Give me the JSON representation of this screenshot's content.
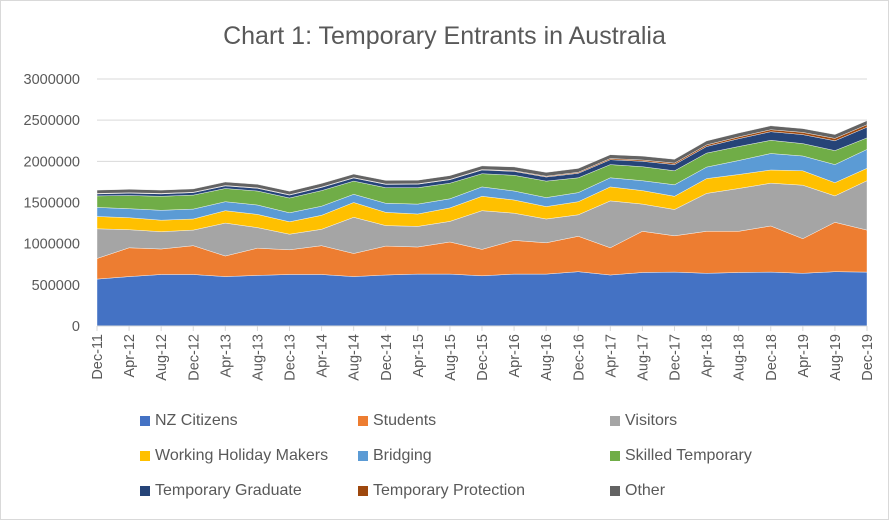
{
  "chart_data": {
    "type": "area",
    "stacked": true,
    "title": "Chart 1: Temporary Entrants in Australia",
    "xlabel": "",
    "ylabel": "",
    "ylim": [
      0,
      3000000
    ],
    "yticks": [
      0,
      500000,
      1000000,
      1500000,
      2000000,
      2500000,
      3000000
    ],
    "ytick_labels": [
      "0",
      "500000",
      "1000000",
      "1500000",
      "2000000",
      "2500000",
      "3000000"
    ],
    "grid": true,
    "legend_position": "bottom",
    "categories": [
      "Dec-11",
      "Apr-12",
      "Aug-12",
      "Dec-12",
      "Apr-13",
      "Aug-13",
      "Dec-13",
      "Apr-14",
      "Aug-14",
      "Dec-14",
      "Apr-15",
      "Aug-15",
      "Dec-15",
      "Apr-16",
      "Aug-16",
      "Dec-16",
      "Apr-17",
      "Aug-17",
      "Dec-17",
      "Apr-18",
      "Aug-18",
      "Dec-18",
      "Apr-19",
      "Aug-19",
      "Dec-19"
    ],
    "series": [
      {
        "name": "NZ Citizens",
        "color": "#4472c4",
        "values": [
          570000,
          600000,
          625000,
          625000,
          600000,
          615000,
          625000,
          625000,
          600000,
          620000,
          630000,
          630000,
          610000,
          630000,
          630000,
          660000,
          620000,
          650000,
          655000,
          640000,
          650000,
          655000,
          640000,
          660000,
          655000
        ]
      },
      {
        "name": "Students",
        "color": "#ed7d31",
        "values": [
          250000,
          350000,
          310000,
          350000,
          250000,
          330000,
          300000,
          350000,
          280000,
          350000,
          330000,
          390000,
          320000,
          410000,
          380000,
          430000,
          330000,
          500000,
          440000,
          510000,
          500000,
          560000,
          420000,
          600000,
          510000
        ]
      },
      {
        "name": "Visitors",
        "color": "#a5a5a5",
        "values": [
          360000,
          220000,
          210000,
          190000,
          400000,
          250000,
          190000,
          200000,
          440000,
          250000,
          250000,
          250000,
          470000,
          330000,
          290000,
          260000,
          570000,
          330000,
          320000,
          460000,
          520000,
          520000,
          650000,
          320000,
          600000
        ]
      },
      {
        "name": "Working Holiday Makers",
        "color": "#ffc000",
        "values": [
          150000,
          145000,
          140000,
          135000,
          150000,
          160000,
          150000,
          170000,
          180000,
          160000,
          150000,
          165000,
          175000,
          160000,
          150000,
          160000,
          170000,
          165000,
          160000,
          180000,
          170000,
          160000,
          175000,
          160000,
          150000
        ]
      },
      {
        "name": "Bridging",
        "color": "#5b9bd5",
        "values": [
          110000,
          110000,
          120000,
          120000,
          110000,
          115000,
          110000,
          110000,
          100000,
          110000,
          120000,
          110000,
          115000,
          110000,
          110000,
          110000,
          110000,
          120000,
          140000,
          140000,
          170000,
          200000,
          180000,
          220000,
          230000
        ]
      },
      {
        "name": "Skilled Temporary",
        "color": "#70ad47",
        "values": [
          140000,
          160000,
          170000,
          170000,
          160000,
          170000,
          180000,
          190000,
          160000,
          190000,
          200000,
          190000,
          160000,
          190000,
          200000,
          180000,
          160000,
          170000,
          170000,
          170000,
          170000,
          160000,
          150000,
          170000,
          140000
        ]
      },
      {
        "name": "Temporary Graduate",
        "color": "#264478",
        "values": [
          25000,
          28000,
          30000,
          30000,
          32000,
          33000,
          35000,
          38000,
          38000,
          40000,
          42000,
          42000,
          45000,
          48000,
          50000,
          55000,
          60000,
          65000,
          75000,
          80000,
          95000,
          105000,
          110000,
          120000,
          130000
        ]
      },
      {
        "name": "Temporary Protection",
        "color": "#9e480e",
        "values": [
          5000,
          5000,
          5000,
          5000,
          5000,
          5000,
          5000,
          5000,
          5000,
          5000,
          5000,
          5000,
          6000,
          8000,
          10000,
          12000,
          14000,
          16000,
          18000,
          20000,
          22000,
          24000,
          26000,
          28000,
          30000
        ]
      },
      {
        "name": "Other",
        "color": "#636363",
        "values": [
          40000,
          42000,
          40000,
          40000,
          42000,
          43000,
          42000,
          44000,
          42000,
          43000,
          44000,
          45000,
          44000,
          46000,
          45000,
          47000,
          46000,
          48000,
          47000,
          48000,
          47000,
          48000,
          47000,
          48000,
          48000
        ]
      }
    ]
  },
  "legend": {
    "items": [
      {
        "label": "NZ Citizens",
        "color": "#4472c4"
      },
      {
        "label": "Students",
        "color": "#ed7d31"
      },
      {
        "label": "Visitors",
        "color": "#a5a5a5"
      },
      {
        "label": "Working Holiday Makers",
        "color": "#ffc000"
      },
      {
        "label": "Bridging",
        "color": "#5b9bd5"
      },
      {
        "label": "Skilled Temporary",
        "color": "#70ad47"
      },
      {
        "label": "Temporary Graduate",
        "color": "#264478"
      },
      {
        "label": "Temporary Protection",
        "color": "#9e480e"
      },
      {
        "label": "Other",
        "color": "#636363"
      }
    ]
  }
}
